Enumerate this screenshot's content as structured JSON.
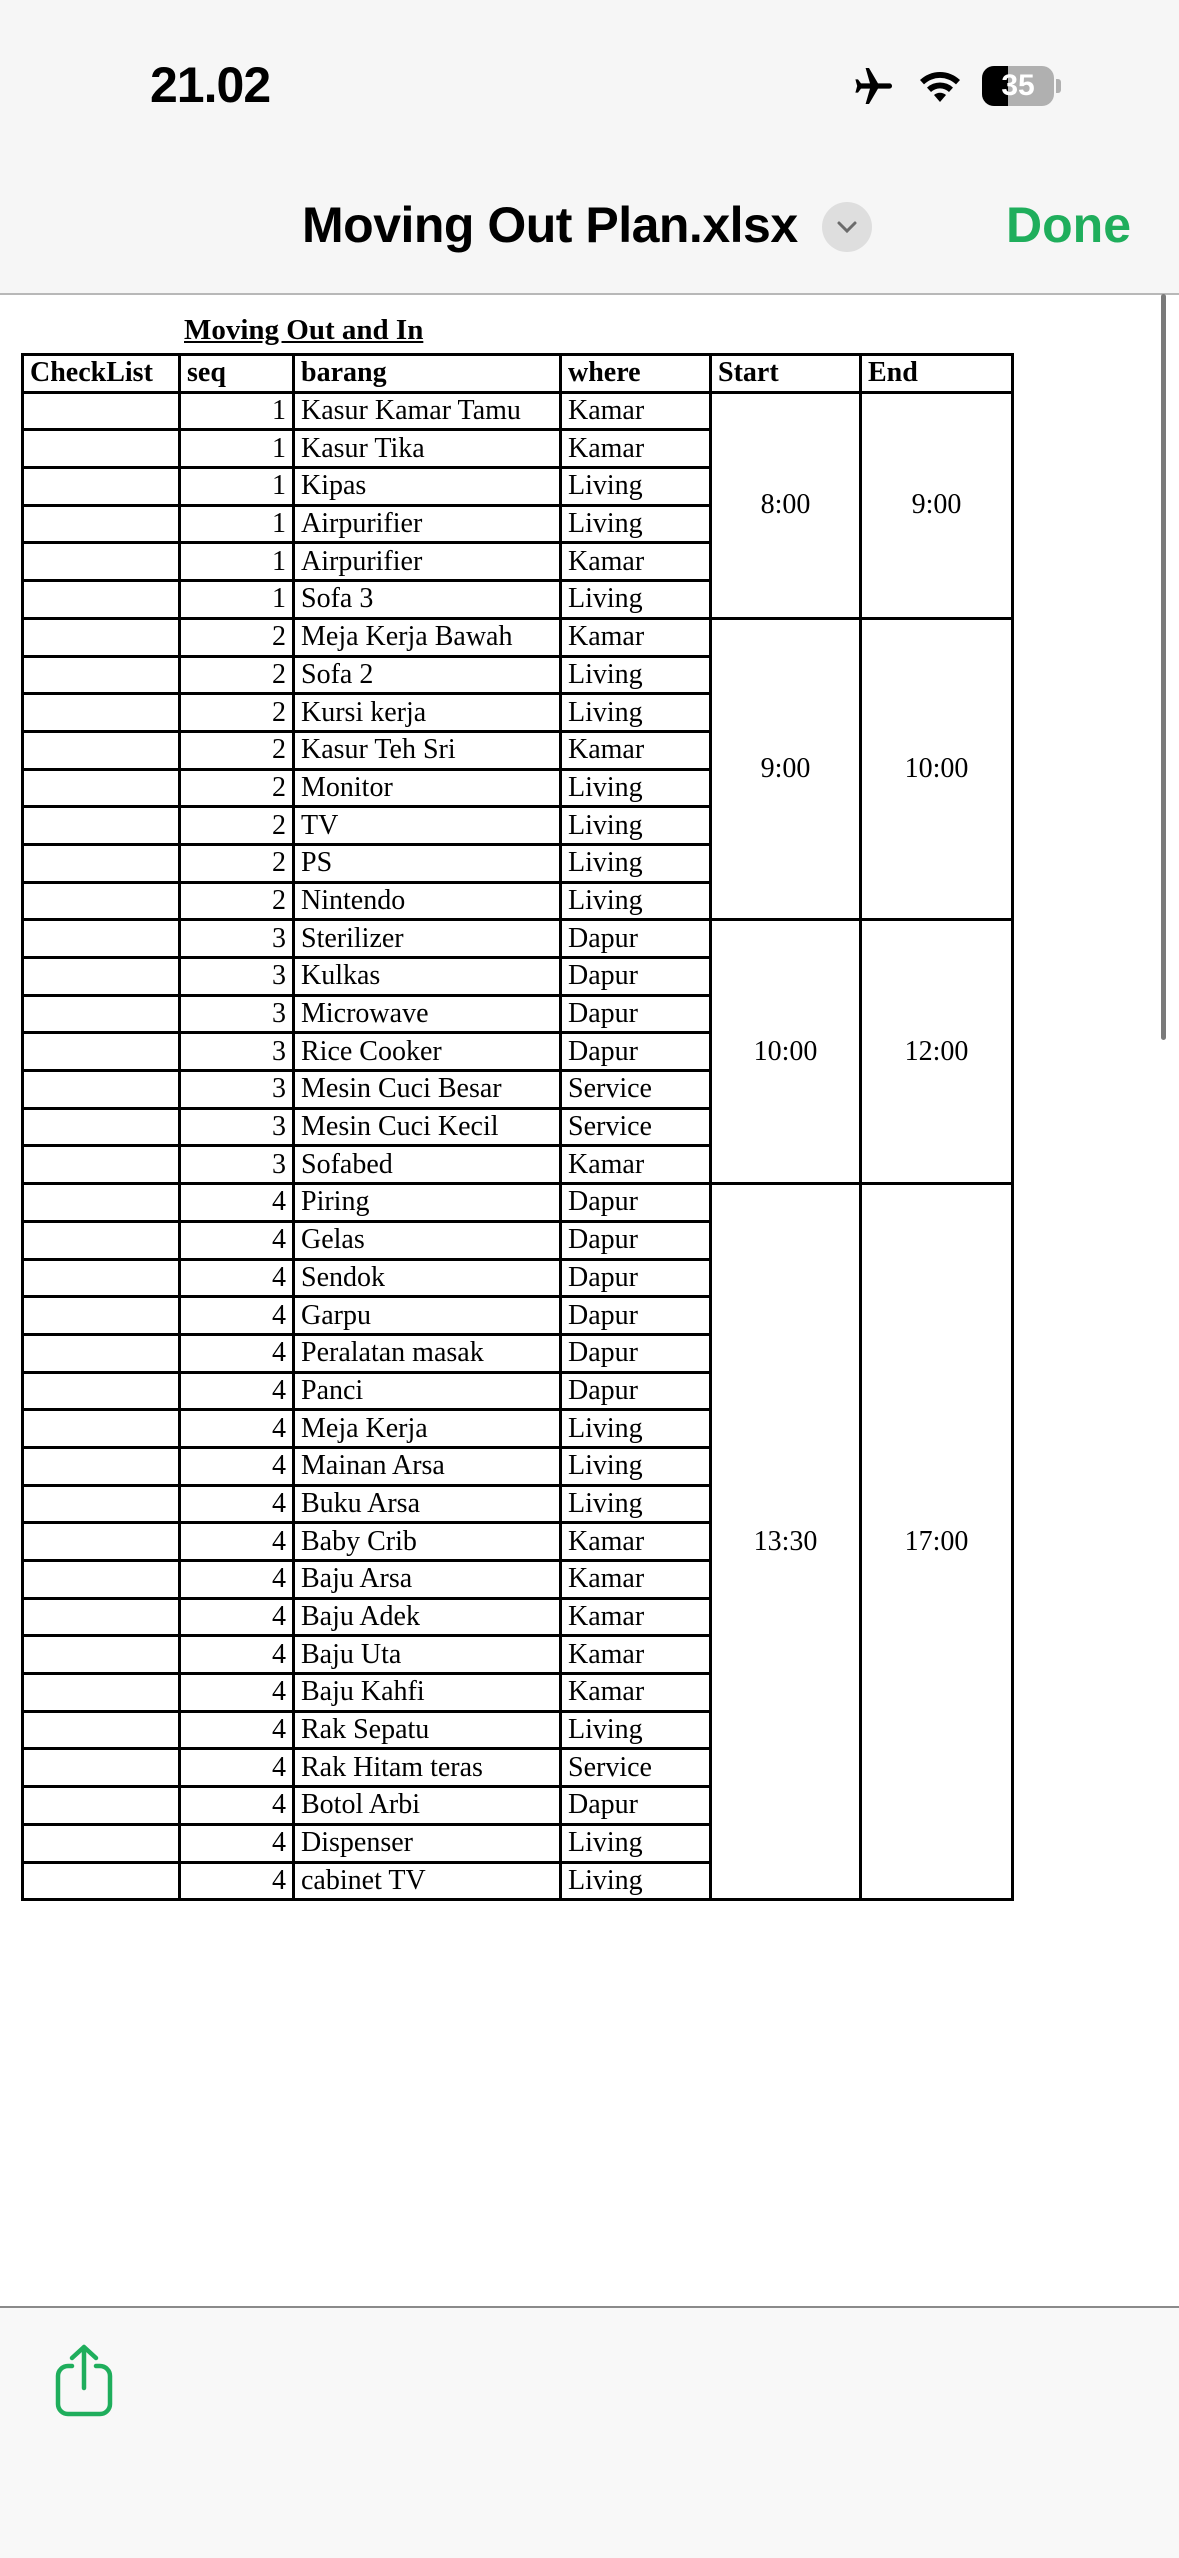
{
  "status_bar": {
    "time": "21.02",
    "battery": "35"
  },
  "header": {
    "title": "Moving Out Plan.xlsx",
    "done_label": "Done",
    "accent_color": "#1fae5c"
  },
  "sheet": {
    "title": "Moving Out and In",
    "columns": [
      "CheckList",
      "seq",
      "barang",
      "where",
      "Start",
      "End"
    ],
    "groups": [
      {
        "start": "8:00",
        "end": "9:00",
        "rows": [
          {
            "seq": "1",
            "barang": "Kasur Kamar Tamu",
            "where": "Kamar"
          },
          {
            "seq": "1",
            "barang": "Kasur Tika",
            "where": "Kamar"
          },
          {
            "seq": "1",
            "barang": "Kipas",
            "where": "Living"
          },
          {
            "seq": "1",
            "barang": "Airpurifier",
            "where": "Living"
          },
          {
            "seq": "1",
            "barang": "Airpurifier",
            "where": "Kamar"
          },
          {
            "seq": "1",
            "barang": "Sofa 3",
            "where": "Living"
          }
        ]
      },
      {
        "start": "9:00",
        "end": "10:00",
        "rows": [
          {
            "seq": "2",
            "barang": "Meja Kerja Bawah",
            "where": "Kamar"
          },
          {
            "seq": "2",
            "barang": "Sofa 2",
            "where": "Living"
          },
          {
            "seq": "2",
            "barang": "Kursi kerja",
            "where": "Living"
          },
          {
            "seq": "2",
            "barang": "Kasur Teh Sri",
            "where": "Kamar"
          },
          {
            "seq": "2",
            "barang": "Monitor",
            "where": "Living"
          },
          {
            "seq": "2",
            "barang": "TV",
            "where": "Living"
          },
          {
            "seq": "2",
            "barang": "PS",
            "where": "Living"
          },
          {
            "seq": "2",
            "barang": "Nintendo",
            "where": "Living"
          }
        ]
      },
      {
        "start": "10:00",
        "end": "12:00",
        "rows": [
          {
            "seq": "3",
            "barang": "Sterilizer",
            "where": "Dapur"
          },
          {
            "seq": "3",
            "barang": "Kulkas",
            "where": "Dapur"
          },
          {
            "seq": "3",
            "barang": "Microwave",
            "where": "Dapur"
          },
          {
            "seq": "3",
            "barang": "Rice Cooker",
            "where": "Dapur"
          },
          {
            "seq": "3",
            "barang": "Mesin Cuci Besar",
            "where": "Service"
          },
          {
            "seq": "3",
            "barang": "Mesin Cuci Kecil",
            "where": "Service"
          },
          {
            "seq": "3",
            "barang": "Sofabed",
            "where": "Kamar"
          }
        ]
      },
      {
        "start": "13:30",
        "end": "17:00",
        "rows": [
          {
            "seq": "4",
            "barang": "Piring",
            "where": "Dapur"
          },
          {
            "seq": "4",
            "barang": "Gelas",
            "where": "Dapur"
          },
          {
            "seq": "4",
            "barang": "Sendok",
            "where": "Dapur"
          },
          {
            "seq": "4",
            "barang": "Garpu",
            "where": "Dapur"
          },
          {
            "seq": "4",
            "barang": "Peralatan masak",
            "where": "Dapur"
          },
          {
            "seq": "4",
            "barang": "Panci",
            "where": "Dapur"
          },
          {
            "seq": "4",
            "barang": "Meja Kerja",
            "where": "Living"
          },
          {
            "seq": "4",
            "barang": "Mainan Arsa",
            "where": "Living"
          },
          {
            "seq": "4",
            "barang": "Buku Arsa",
            "where": "Living"
          },
          {
            "seq": "4",
            "barang": "Baby Crib",
            "where": "Kamar"
          },
          {
            "seq": "4",
            "barang": "Baju Arsa",
            "where": "Kamar"
          },
          {
            "seq": "4",
            "barang": "Baju Adek",
            "where": "Kamar"
          },
          {
            "seq": "4",
            "barang": "Baju Uta",
            "where": "Kamar"
          },
          {
            "seq": "4",
            "barang": "Baju Kahfi",
            "where": "Kamar"
          },
          {
            "seq": "4",
            "barang": "Rak Sepatu",
            "where": "Living"
          },
          {
            "seq": "4",
            "barang": "Rak Hitam teras",
            "where": "Service"
          },
          {
            "seq": "4",
            "barang": "Botol Arbi",
            "where": "Dapur"
          },
          {
            "seq": "4",
            "barang": "Dispenser",
            "where": "Living"
          },
          {
            "seq": "4",
            "barang": "cabinet TV",
            "where": "Living"
          }
        ]
      }
    ]
  },
  "toolbar": {
    "share_icon": "share-icon"
  }
}
